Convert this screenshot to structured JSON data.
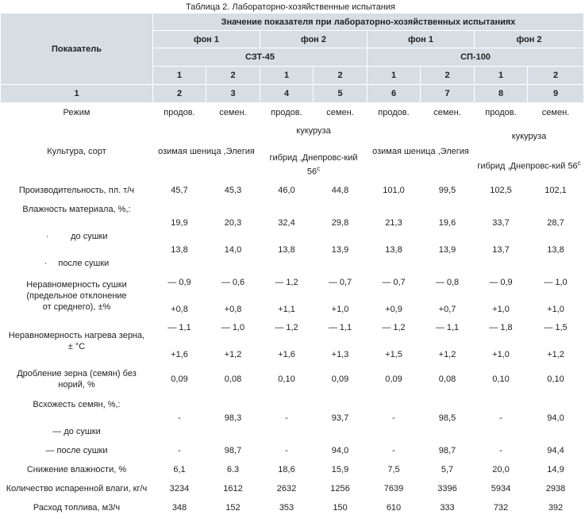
{
  "caption": "Таблица 2. Лабораторно-хозяйственные испытания",
  "header": {
    "indicator": "Показатель",
    "value_group": "Значение показателя при лабораторно-хозяйственных испытаниях",
    "backgrounds": [
      "фон 1",
      "фон 2",
      "фон 1",
      "фон 2"
    ],
    "machines": [
      "СЗТ-45",
      "СП-100"
    ],
    "sub_numbers": [
      "1",
      "2",
      "1",
      "2",
      "1",
      "2",
      "1",
      "2"
    ],
    "col_numbers": [
      "1",
      "2",
      "3",
      "4",
      "5",
      "6",
      "7",
      "8",
      "9"
    ]
  },
  "rows": {
    "mode": {
      "label": "Режим",
      "values": [
        "продов.",
        "семен.",
        "продов.",
        "семен.",
        "продов.",
        "семен.",
        "продов.",
        "семен."
      ]
    },
    "culture": {
      "label": "Культура, сорт",
      "szt_winter": "озимая шеница ,Элегия",
      "szt_corn_top": "кукуруза",
      "szt_corn_bottom": "гибрид ,Днепровс-кий 56",
      "szt_corn_sup": "с",
      "sp_winter": "озимая шеница ,Элегия",
      "sp_corn_top": "кукуруза",
      "sp_corn_bottom": "гибрид ,Днепровс-кий 56",
      "sp_corn_sup": "с"
    },
    "productivity": {
      "label": "Производительность, пл. т/ч",
      "values": [
        "45,7",
        "45,3",
        "46,0",
        "44,8",
        "101,0",
        "99,5",
        "102,5",
        "102,1"
      ]
    },
    "moisture": {
      "label": "Влажность материала, %,:",
      "before_label": "до сушки",
      "after_label": "после сушки",
      "bullet": "·",
      "before": [
        "19,9",
        "20,3",
        "32,4",
        "29,8",
        "21,3",
        "19,6",
        "33,7",
        "28,7"
      ],
      "after": [
        "13,8",
        "14,0",
        "13,8",
        "13,9",
        "13,8",
        "13,9",
        "13,7",
        "13,8"
      ]
    },
    "unevenness_drying": {
      "label_1": "Неравномерность сушки",
      "label_2": "(предельное отклонение",
      "label_3": "от среднего), ±%",
      "top": [
        "— 0,9",
        "— 0,6",
        "— 1,2",
        "— 0,7",
        "— 0,7",
        "— 0,8",
        "— 0,9",
        "— 1,0"
      ],
      "bottom": [
        "+0,8",
        "+0,8",
        "+1,1",
        "+1,0",
        "+0,9",
        "+0,7",
        "+1,0",
        "+1,0"
      ]
    },
    "unevenness_heating": {
      "label_1": "Неравномерность нагрева зерна,",
      "label_2": "± °С",
      "top": [
        "— 1,1",
        "— 1,0",
        "— 1,2",
        "— 1,1",
        "— 1,2",
        "— 1,1",
        "— 1,8",
        "— 1,5"
      ],
      "bottom": [
        "+1,6",
        "+1,2",
        "+1,6",
        "+1,3",
        "+1,5",
        "+1,2",
        "+1,0",
        "+1,2"
      ]
    },
    "crushing": {
      "label_1": "Дробление зерна (семян) без",
      "label_2": "норий, %",
      "values": [
        "0,09",
        "0,08",
        "0,10",
        "0,09",
        "0,09",
        "0,08",
        "0,10",
        "0,10"
      ]
    },
    "germination": {
      "label": "Всхожесть семян, %,:",
      "before_label": "— до сушки",
      "values": [
        "-",
        "98,3",
        "-",
        "93,7",
        "-",
        "98,5",
        "-",
        "94,0"
      ]
    },
    "germination_after": {
      "label": "— после сушки",
      "values": [
        "-",
        "98,7",
        "-",
        "94,0",
        "-",
        "98,7",
        "-",
        "94,4"
      ]
    },
    "moisture_reduction": {
      "label": "Снижение влажности, %",
      "values": [
        "6,1",
        "6.3",
        "18,6",
        "15,9",
        "7,5",
        "5,7",
        "20,0",
        "14,9"
      ]
    },
    "evaporated": {
      "label": "Количество испаренной влаги, кг/ч",
      "values": [
        "3234",
        "1612",
        "2632",
        "1256",
        "7639",
        "3396",
        "5934",
        "2938"
      ]
    },
    "fuel": {
      "label": "Расход топлива, м3/ч",
      "values": [
        "348",
        "152",
        "353",
        "150",
        "610",
        "333",
        "732",
        "392"
      ]
    }
  },
  "colors": {
    "header_bg": "#d6dde3",
    "border": "#d8dde2"
  }
}
